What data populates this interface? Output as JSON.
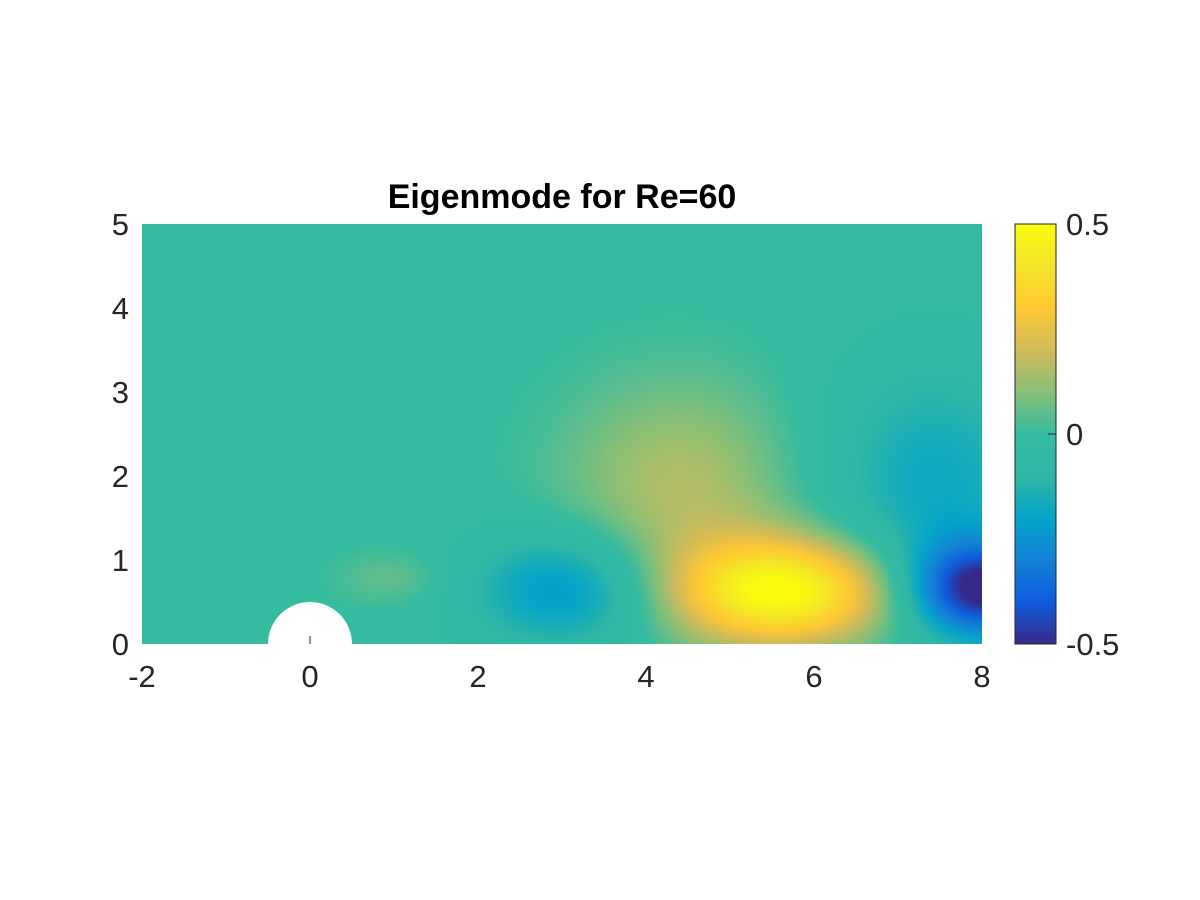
{
  "chart_data": {
    "type": "heatmap",
    "title": "Eigenmode for Re=60",
    "xlabel": "",
    "ylabel": "",
    "xlim": [
      -2,
      8
    ],
    "ylim": [
      0,
      5
    ],
    "x_ticks": [
      "-2",
      "0",
      "2",
      "4",
      "6",
      "8"
    ],
    "y_ticks": [
      "0",
      "1",
      "2",
      "3",
      "4",
      "5"
    ],
    "colorbar": {
      "limits": [
        -0.5,
        0.5
      ],
      "ticks": [
        "-0.5",
        "0",
        "0.5"
      ],
      "colormap": "parula"
    },
    "obstacle": {
      "shape": "half-circle",
      "center": [
        0,
        0
      ],
      "radius": 0.5
    },
    "features": [
      {
        "x": 5.65,
        "y": 0.62,
        "value": 0.5
      },
      {
        "x": 4.4,
        "y": 1.8,
        "value": 0.16
      },
      {
        "x": 3.1,
        "y": 0.65,
        "value": -0.25
      },
      {
        "x": 1.0,
        "y": 0.78,
        "value": 0.06
      },
      {
        "x": 8.0,
        "y": 0.65,
        "value": -0.5
      },
      {
        "x": 7.4,
        "y": 1.9,
        "value": -0.18
      }
    ],
    "grid": false,
    "background_value": -0.01
  },
  "colors": {
    "axis_text": "#262626",
    "colorbar_top": "#f9fb0e",
    "colorbar_mid": "#1fb5a5",
    "colorbar_bottom": "#352a87"
  }
}
